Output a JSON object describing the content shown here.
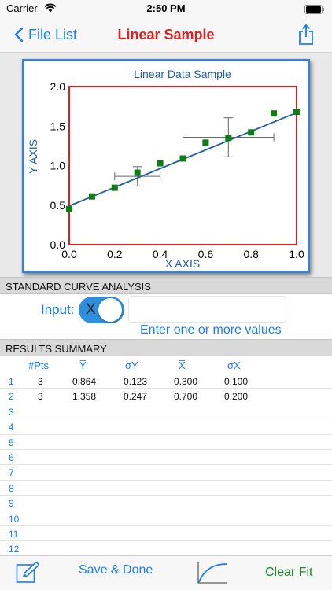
{
  "status": {
    "carrier": "Carrier",
    "time": "2:50 PM"
  },
  "nav": {
    "back_label": "File List",
    "title": "Linear Sample"
  },
  "chart_data": {
    "type": "scatter",
    "title": "Linear Data Sample",
    "xlabel": "X AXIS",
    "ylabel": "Y AXIS",
    "xlim": [
      0.0,
      1.0
    ],
    "ylim": [
      0.0,
      2.0
    ],
    "x_ticks": [
      "0.0",
      "0.2",
      "0.4",
      "0.6",
      "0.8",
      "1.0"
    ],
    "y_ticks": [
      "0.0",
      "0.5",
      "1.0",
      "1.5",
      "2.0"
    ],
    "grid": false,
    "points": [
      {
        "x": 0.0,
        "y": 0.45
      },
      {
        "x": 0.1,
        "y": 0.61
      },
      {
        "x": 0.2,
        "y": 0.72
      },
      {
        "x": 0.3,
        "y": 0.91
      },
      {
        "x": 0.4,
        "y": 1.03
      },
      {
        "x": 0.5,
        "y": 1.09
      },
      {
        "x": 0.6,
        "y": 1.29
      },
      {
        "x": 0.7,
        "y": 1.35
      },
      {
        "x": 0.8,
        "y": 1.42
      },
      {
        "x": 0.9,
        "y": 1.66
      },
      {
        "x": 1.0,
        "y": 1.68
      }
    ],
    "error_bars": [
      {
        "x": 0.3,
        "y": 0.864,
        "sx": 0.1,
        "sy": 0.123
      },
      {
        "x": 0.7,
        "y": 1.358,
        "sx": 0.2,
        "sy": 0.247
      }
    ],
    "fit_line": {
      "x": [
        0.0,
        1.0
      ],
      "y": [
        0.49,
        1.67
      ]
    },
    "colors": {
      "frame": "#e01e1e",
      "points": "#0f7d16",
      "fit": "#1f5fa8",
      "title": "#1f5fa8",
      "errors": "#666666"
    }
  },
  "analysis": {
    "header": "STANDARD CURVE ANALYSIS",
    "input_label": "Input:",
    "toggle_letter": "X",
    "input_value": "",
    "input_placeholder": "",
    "hint": "Enter one or more values"
  },
  "results": {
    "header": "RESULTS SUMMARY",
    "columns": [
      "#Pts",
      "Y̅",
      "σY",
      "X̅",
      "σX"
    ],
    "rows": [
      {
        "n": "1",
        "cells": [
          "3",
          "0.864",
          "0.123",
          "0.300",
          "0.100"
        ]
      },
      {
        "n": "2",
        "cells": [
          "3",
          "1.358",
          "0.247",
          "0.700",
          "0.200"
        ]
      },
      {
        "n": "3",
        "cells": [
          "",
          "",
          "",
          "",
          ""
        ]
      },
      {
        "n": "4",
        "cells": [
          "",
          "",
          "",
          "",
          ""
        ]
      },
      {
        "n": "5",
        "cells": [
          "",
          "",
          "",
          "",
          ""
        ]
      },
      {
        "n": "6",
        "cells": [
          "",
          "",
          "",
          "",
          ""
        ]
      },
      {
        "n": "7",
        "cells": [
          "",
          "",
          "",
          "",
          ""
        ]
      },
      {
        "n": "8",
        "cells": [
          "",
          "",
          "",
          "",
          ""
        ]
      },
      {
        "n": "9",
        "cells": [
          "",
          "",
          "",
          "",
          ""
        ]
      },
      {
        "n": "10",
        "cells": [
          "",
          "",
          "",
          "",
          ""
        ]
      },
      {
        "n": "11",
        "cells": [
          "",
          "",
          "",
          "",
          ""
        ]
      },
      {
        "n": "12",
        "cells": [
          "",
          "",
          "",
          "",
          ""
        ]
      }
    ]
  },
  "toolbar": {
    "save_label": "Save & Done",
    "clear_label": "Clear Fit"
  },
  "icons": {
    "back": "chevron-left-icon",
    "share": "share-icon",
    "edit": "edit-pencil-icon",
    "curve": "curve-fit-icon",
    "wifi": "wifi-icon",
    "battery": "battery-icon"
  },
  "colors": {
    "accent": "#1c7cf4",
    "title": "#e11f1f",
    "clear": "#1a8a2a",
    "toggle_on": "#2e8fdd"
  }
}
